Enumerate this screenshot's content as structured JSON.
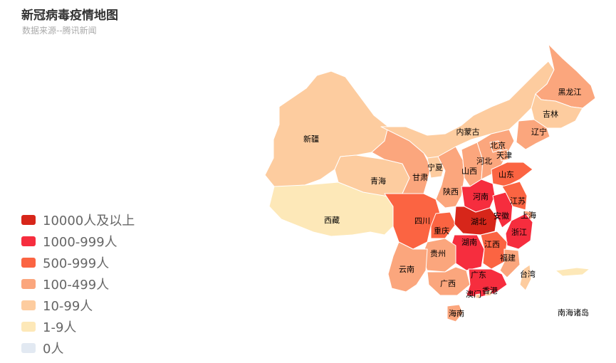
{
  "title": "新冠病毒疫情地图",
  "subtitle": "数据来源--腾讯新闻",
  "legend": [
    {
      "label": "10000人及以上",
      "color": "#d7261a"
    },
    {
      "label": "1000-999人",
      "color": "#f62d3e"
    },
    {
      "label": "500-999人",
      "color": "#fb6442"
    },
    {
      "label": "100-499人",
      "color": "#fba67d"
    },
    {
      "label": "10-99人",
      "color": "#fdcc9f"
    },
    {
      "label": "1-9人",
      "color": "#fde8b8"
    },
    {
      "label": "0人",
      "color": "#e2e9f2"
    }
  ],
  "regions": [
    {
      "id": "xinjiang",
      "label": "新疆",
      "tier": 4
    },
    {
      "id": "xizang",
      "label": "西藏",
      "tier": 5
    },
    {
      "id": "qinghai",
      "label": "青海",
      "tier": 4
    },
    {
      "id": "gansu",
      "label": "甘肃",
      "tier": 3
    },
    {
      "id": "neimenggu",
      "label": "内蒙古",
      "tier": 4
    },
    {
      "id": "heilongjiang",
      "label": "黑龙江",
      "tier": 3
    },
    {
      "id": "jilin",
      "label": "吉林",
      "tier": 4
    },
    {
      "id": "liaoning",
      "label": "辽宁",
      "tier": 3
    },
    {
      "id": "ningxia",
      "label": "宁夏",
      "tier": 4
    },
    {
      "id": "shaanxi",
      "label": "陕西",
      "tier": 3
    },
    {
      "id": "shanxi",
      "label": "山西",
      "tier": 3
    },
    {
      "id": "hebei",
      "label": "河北",
      "tier": 3
    },
    {
      "id": "beijing",
      "label": "北京",
      "tier": 3
    },
    {
      "id": "tianjin",
      "label": "天津",
      "tier": 3
    },
    {
      "id": "shandong",
      "label": "山东",
      "tier": 2
    },
    {
      "id": "henan",
      "label": "河南",
      "tier": 1
    },
    {
      "id": "sichuan",
      "label": "四川",
      "tier": 2
    },
    {
      "id": "chongqing",
      "label": "重庆",
      "tier": 2
    },
    {
      "id": "hubei",
      "label": "湖北",
      "tier": 0
    },
    {
      "id": "anhui",
      "label": "安徽",
      "tier": 1
    },
    {
      "id": "jiangsu",
      "label": "江苏",
      "tier": 2
    },
    {
      "id": "shanghai",
      "label": "上海",
      "tier": 3
    },
    {
      "id": "zhejiang",
      "label": "浙江",
      "tier": 1
    },
    {
      "id": "hunan",
      "label": "湖南",
      "tier": 1
    },
    {
      "id": "jiangxi",
      "label": "江西",
      "tier": 2
    },
    {
      "id": "guizhou",
      "label": "贵州",
      "tier": 3
    },
    {
      "id": "yunnan",
      "label": "云南",
      "tier": 3
    },
    {
      "id": "guangxi",
      "label": "广西",
      "tier": 3
    },
    {
      "id": "guangdong",
      "label": "广东",
      "tier": 1
    },
    {
      "id": "fujian",
      "label": "福建",
      "tier": 3
    },
    {
      "id": "taiwan",
      "label": "台湾",
      "tier": 4
    },
    {
      "id": "hongkong",
      "label": "香港",
      "tier": 4
    },
    {
      "id": "macau",
      "label": "澳门",
      "tier": 4
    },
    {
      "id": "hainan",
      "label": "海南",
      "tier": 3
    },
    {
      "id": "nanhai",
      "label": "南海诸岛",
      "tier": 5
    }
  ]
}
